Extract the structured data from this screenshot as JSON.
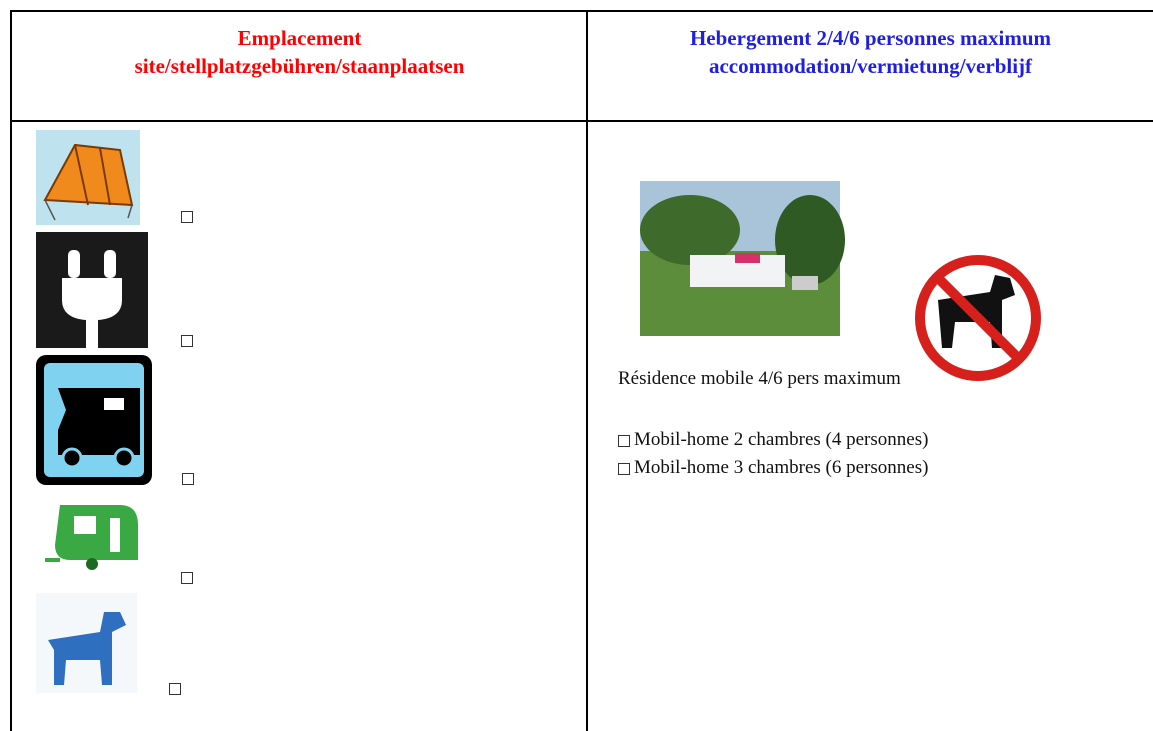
{
  "header": {
    "left": {
      "line1": "Emplacement",
      "line2": "site/stellplatzgebühren/staanplaatsen"
    },
    "right": {
      "line1": "Hebergement 2/4/6 personnes maximum",
      "line2": "accommodation/vermietung/verblijf"
    }
  },
  "accommodation": {
    "caption": "Résidence mobile 4/6 pers maximum",
    "options": [
      "Mobil-home 2 chambres (4 personnes)",
      "Mobil-home 3 chambres (6 personnes)"
    ]
  }
}
